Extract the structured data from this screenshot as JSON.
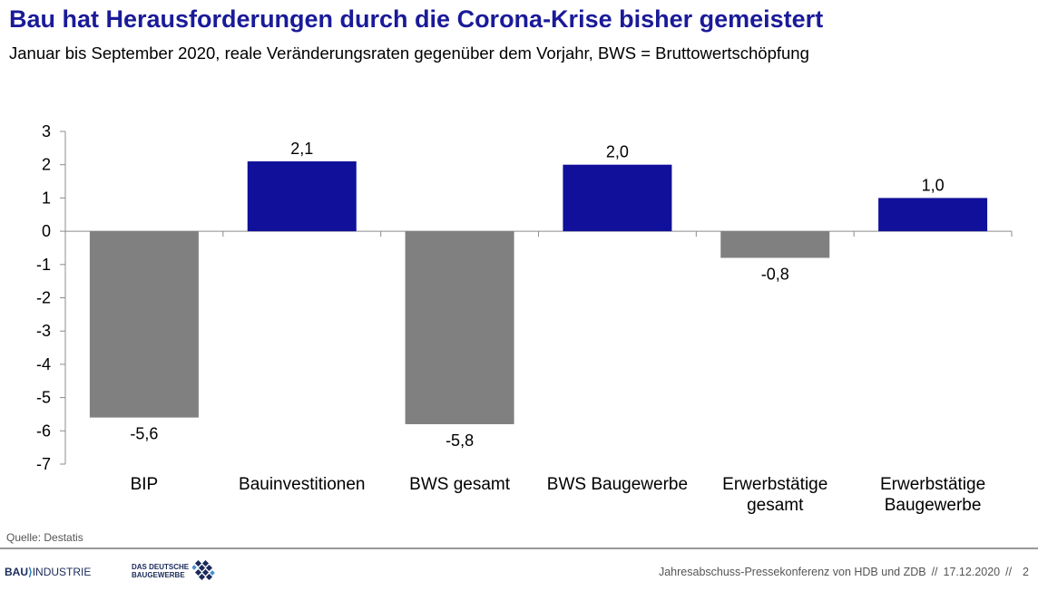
{
  "title": "Bau hat Herausforderungen durch die Corona-Krise bisher gemeistert",
  "subtitle": "Januar bis September 2020, reale Veränderungsraten gegenüber dem Vorjahr, BWS = Bruttowertschöpfung",
  "source": "Quelle: Destatis",
  "chart_data": {
    "type": "bar",
    "title": "Bau hat Herausforderungen durch die Corona-Krise bisher gemeistert",
    "subtitle": "Januar bis September 2020, reale Veränderungsraten gegenüber dem Vorjahr, BWS = Bruttowertschöpfung",
    "categories": [
      [
        "BIP"
      ],
      [
        "Bauinvestitionen"
      ],
      [
        "BWS gesamt"
      ],
      [
        "BWS Baugewerbe"
      ],
      [
        "Erwerbstätige",
        "gesamt"
      ],
      [
        "Erwerbstätige",
        "Baugewerbe"
      ]
    ],
    "values": [
      -5.6,
      2.1,
      -5.8,
      2.0,
      -0.8,
      1.0
    ],
    "value_labels": [
      "-5,6",
      "2,1",
      "-5,8",
      "2,0",
      "-0,8",
      "1,0"
    ],
    "bar_colors": [
      "#808080",
      "#10109a",
      "#808080",
      "#10109a",
      "#808080",
      "#10109a"
    ],
    "ylim": [
      -7,
      3
    ],
    "yticks": [
      3,
      2,
      1,
      0,
      -1,
      -2,
      -3,
      -4,
      -5,
      -6,
      -7
    ],
    "grid": false,
    "legend": "none",
    "xlabel": "",
    "ylabel": ""
  },
  "footer": {
    "logo_bau": {
      "bold": "BAU",
      "separator": "⟩",
      "rest": "INDUSTRIE"
    },
    "logo_zdb": {
      "line1": "DAS DEUTSCHE",
      "line2": "BAUGEWERBE"
    },
    "event": "Jahresabschuss-Pressekonferenz von HDB und ZDB",
    "separator": "//",
    "date": "17.12.2020",
    "page": "2"
  },
  "colors": {
    "title": "#1a1a99",
    "positive_bar": "#10109a",
    "negative_bar": "#808080",
    "footer_line": "#9a9a9a"
  }
}
